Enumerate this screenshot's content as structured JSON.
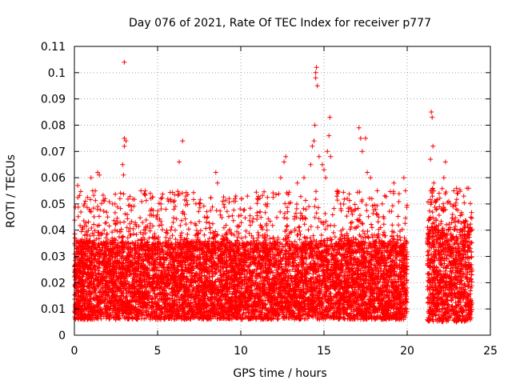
{
  "chart_data": {
    "type": "scatter",
    "title": "Day 076 of 2021, Rate Of TEC Index for receiver p777",
    "xlabel": "GPS time / hours",
    "ylabel": "ROTI / TECUs",
    "xlim": [
      0,
      25
    ],
    "ylim": [
      0,
      0.11
    ],
    "x_ticks": [
      "0",
      "5",
      "10",
      "15",
      "20",
      "25"
    ],
    "y_ticks": [
      "0",
      "0.01",
      "0.02",
      "0.03",
      "0.04",
      "0.05",
      "0.06",
      "0.07",
      "0.08",
      "0.09",
      "0.1",
      "0.11"
    ],
    "grid": true,
    "marker": "+",
    "color": "#ff0000",
    "series": [
      {
        "name": "ROTI",
        "density_segments": [
          {
            "x_start": 0.0,
            "x_end": 20.0,
            "core_range": [
              0.006,
              0.035
            ],
            "spread_max": 0.055
          },
          {
            "x_start": 21.2,
            "x_end": 23.9,
            "core_range": [
              0.005,
              0.04
            ],
            "spread_max": 0.057
          }
        ],
        "outliers": [
          [
            0.2,
            0.057
          ],
          [
            0.6,
            0.05
          ],
          [
            0.9,
            0.048
          ],
          [
            1.0,
            0.06
          ],
          [
            1.1,
            0.055
          ],
          [
            1.4,
            0.062
          ],
          [
            1.5,
            0.061
          ],
          [
            2.0,
            0.045
          ],
          [
            2.3,
            0.05
          ],
          [
            2.9,
            0.065
          ],
          [
            3.0,
            0.104
          ],
          [
            3.0,
            0.075
          ],
          [
            3.0,
            0.072
          ],
          [
            3.1,
            0.074
          ],
          [
            2.95,
            0.061
          ],
          [
            4.0,
            0.055
          ],
          [
            4.2,
            0.054
          ],
          [
            4.6,
            0.052
          ],
          [
            5.2,
            0.052
          ],
          [
            5.5,
            0.048
          ],
          [
            6.3,
            0.066
          ],
          [
            6.5,
            0.074
          ],
          [
            6.7,
            0.053
          ],
          [
            7.5,
            0.05
          ],
          [
            8.5,
            0.062
          ],
          [
            8.6,
            0.058
          ],
          [
            9.3,
            0.052
          ],
          [
            9.7,
            0.053
          ],
          [
            10.4,
            0.053
          ],
          [
            11.0,
            0.052
          ],
          [
            11.6,
            0.05
          ],
          [
            12.4,
            0.06
          ],
          [
            12.6,
            0.066
          ],
          [
            12.7,
            0.068
          ],
          [
            13.4,
            0.058
          ],
          [
            13.8,
            0.06
          ],
          [
            14.2,
            0.065
          ],
          [
            14.3,
            0.072
          ],
          [
            14.4,
            0.074
          ],
          [
            14.45,
            0.08
          ],
          [
            14.5,
            0.1
          ],
          [
            14.5,
            0.098
          ],
          [
            14.55,
            0.102
          ],
          [
            14.6,
            0.095
          ],
          [
            14.7,
            0.068
          ],
          [
            14.9,
            0.065
          ],
          [
            15.0,
            0.063
          ],
          [
            15.1,
            0.06
          ],
          [
            15.2,
            0.07
          ],
          [
            15.3,
            0.076
          ],
          [
            15.35,
            0.083
          ],
          [
            15.4,
            0.068
          ],
          [
            15.8,
            0.055
          ],
          [
            16.0,
            0.05
          ],
          [
            16.4,
            0.052
          ],
          [
            17.1,
            0.079
          ],
          [
            17.2,
            0.075
          ],
          [
            17.3,
            0.07
          ],
          [
            17.5,
            0.075
          ],
          [
            17.6,
            0.062
          ],
          [
            17.8,
            0.06
          ],
          [
            18.2,
            0.055
          ],
          [
            18.5,
            0.05
          ],
          [
            19.2,
            0.058
          ],
          [
            19.8,
            0.06
          ],
          [
            19.9,
            0.055
          ],
          [
            21.4,
            0.067
          ],
          [
            21.45,
            0.085
          ],
          [
            21.5,
            0.083
          ],
          [
            21.55,
            0.072
          ],
          [
            21.6,
            0.058
          ],
          [
            22.2,
            0.06
          ],
          [
            22.3,
            0.066
          ],
          [
            22.6,
            0.05
          ],
          [
            22.8,
            0.055
          ],
          [
            23.0,
            0.054
          ],
          [
            23.4,
            0.053
          ],
          [
            23.6,
            0.056
          ]
        ]
      }
    ]
  }
}
